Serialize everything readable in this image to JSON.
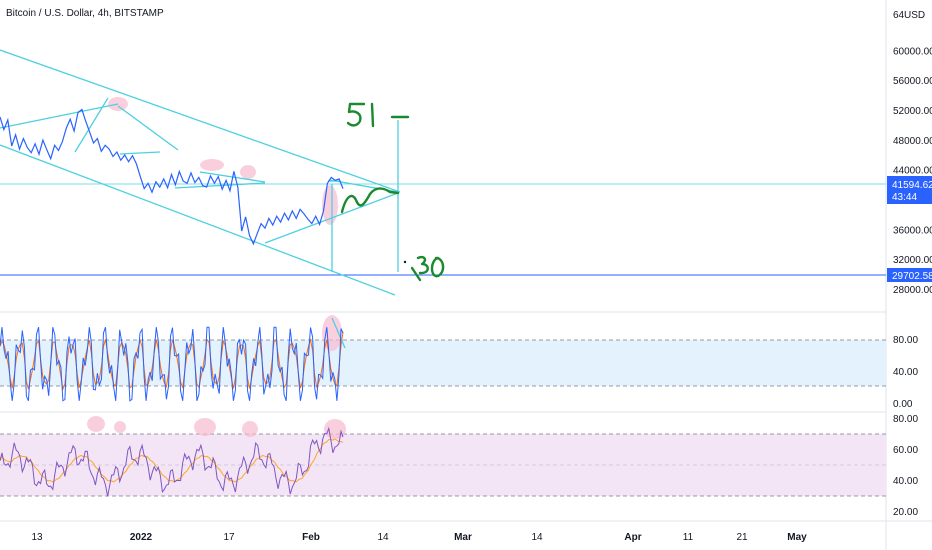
{
  "header": {
    "title": "Bitcoin / U.S. Dollar, 4h, BITSTAMP",
    "currency": "USD"
  },
  "colors": {
    "price_line": "#2962ff",
    "channel_lines": "#4dd0e1",
    "drawing_green": "#1b8a2e",
    "highlight": "#f8bbd0",
    "current_price_bg": "#2962ff",
    "stoch_k": "#2962ff",
    "stoch_d": "#ff6d00",
    "stoch_band": "#e3f2fd",
    "rsi_line": "#7e57c2",
    "rsi_ma": "#ffa726",
    "rsi_band": "#f3e5f5"
  },
  "chart_data": [
    {
      "type": "line",
      "name": "price",
      "y_ticks": [
        "60000.00",
        "56000.00",
        "52000.00",
        "48000.00",
        "44000.00",
        "40000.00",
        "36000.00",
        "32000.00",
        "28000.00"
      ],
      "top_partial_label": "64",
      "current_price": {
        "value": "41594.62",
        "countdown": "43:44"
      },
      "marked_price": "29702.58",
      "annotations": [
        "51",
        "30"
      ],
      "ylim": [
        28000,
        65000
      ],
      "x_ticks": [
        "13",
        "2022",
        "17",
        "Feb",
        "14",
        "Mar",
        "14",
        "Apr",
        "11",
        "21",
        "May"
      ],
      "series": [
        {
          "values": [
            51200,
            49500,
            50800,
            47300,
            48800,
            46900,
            48300,
            47100,
            46400,
            47600,
            46200,
            48100,
            46800,
            45600,
            47400,
            46700,
            47900,
            49700,
            50900,
            49300,
            51800,
            52200,
            50600,
            49200,
            47700,
            48300,
            46600,
            47400,
            46900,
            45900,
            46500,
            45400,
            46100,
            45200,
            46000,
            44900,
            43200,
            41600,
            42300,
            41100,
            42500,
            41800,
            42900,
            41700,
            43500,
            42100,
            43900,
            42600,
            42300,
            43700,
            42400,
            43100,
            42000,
            41800,
            43300,
            42300,
            43200,
            41500,
            42700,
            41300,
            43900,
            41800,
            35900,
            37800,
            35300,
            34200,
            35600,
            36900,
            36300,
            37600,
            36700,
            37900,
            37100,
            38300,
            37400,
            38600,
            37600,
            38800,
            38200,
            37500,
            36900,
            37900,
            36800,
            38600,
            42300,
            43100,
            42700,
            42900,
            41600
          ]
        }
      ]
    },
    {
      "type": "line",
      "name": "stochastic",
      "y_ticks": [
        "80.00",
        "40.00",
        "0.00"
      ],
      "bands": [
        80,
        20
      ],
      "ylim": [
        0,
        100
      ]
    },
    {
      "type": "line",
      "name": "rsi",
      "y_ticks": [
        "80.00",
        "60.00",
        "40.00",
        "20.00"
      ],
      "bands": [
        70,
        30
      ],
      "ylim": [
        20,
        80
      ]
    }
  ]
}
